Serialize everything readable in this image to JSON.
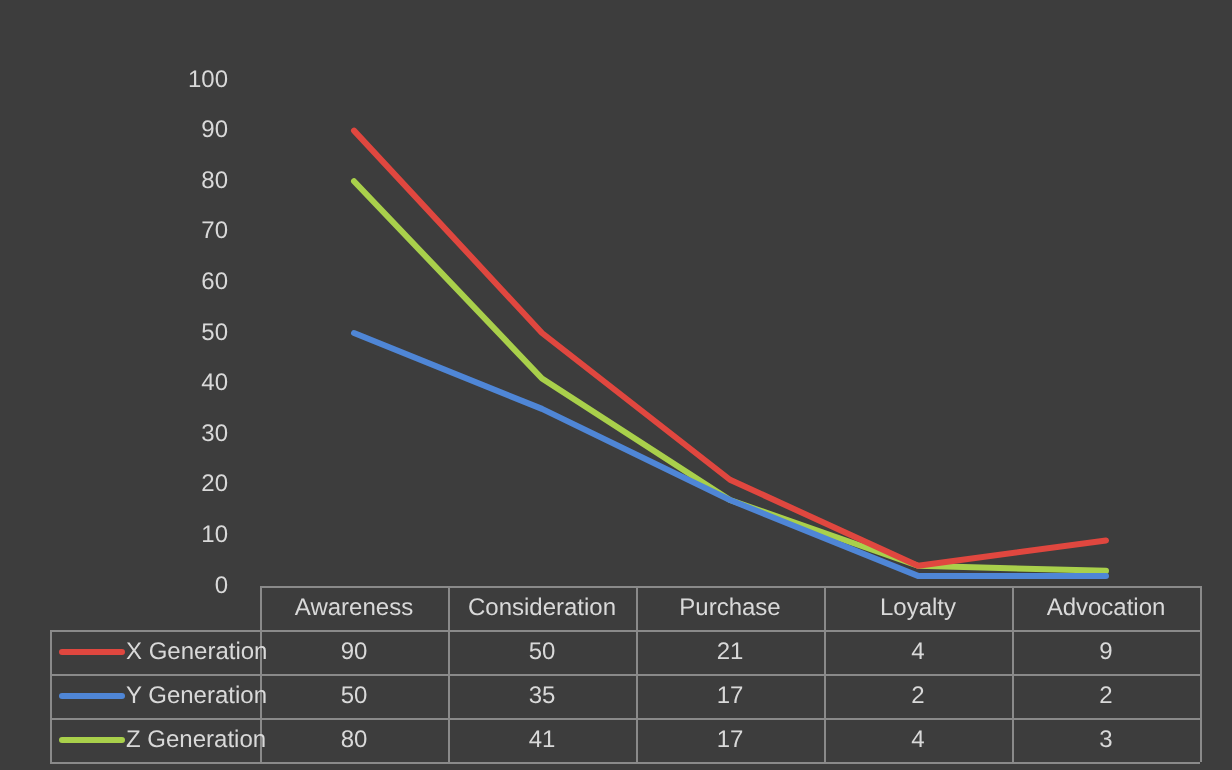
{
  "chart_data": {
    "type": "line",
    "categories": [
      "Awareness",
      "Consideration",
      "Purchase",
      "Loyalty",
      "Advocation"
    ],
    "series": [
      {
        "name": "X Generation",
        "color": "#e0473f",
        "values": [
          90,
          50,
          21,
          4,
          9
        ]
      },
      {
        "name": "Y Generation",
        "color": "#4f86d6",
        "values": [
          50,
          35,
          17,
          2,
          2
        ]
      },
      {
        "name": "Z Generation",
        "color": "#a9d04b",
        "values": [
          80,
          41,
          17,
          4,
          3
        ]
      }
    ],
    "ylim": [
      0,
      100
    ],
    "yticks": [
      0,
      10,
      20,
      30,
      40,
      50,
      60,
      70,
      80,
      90,
      100
    ],
    "grid": false,
    "legend": "bottom",
    "data_labels": true,
    "marker": "none",
    "line_style": "solid"
  }
}
